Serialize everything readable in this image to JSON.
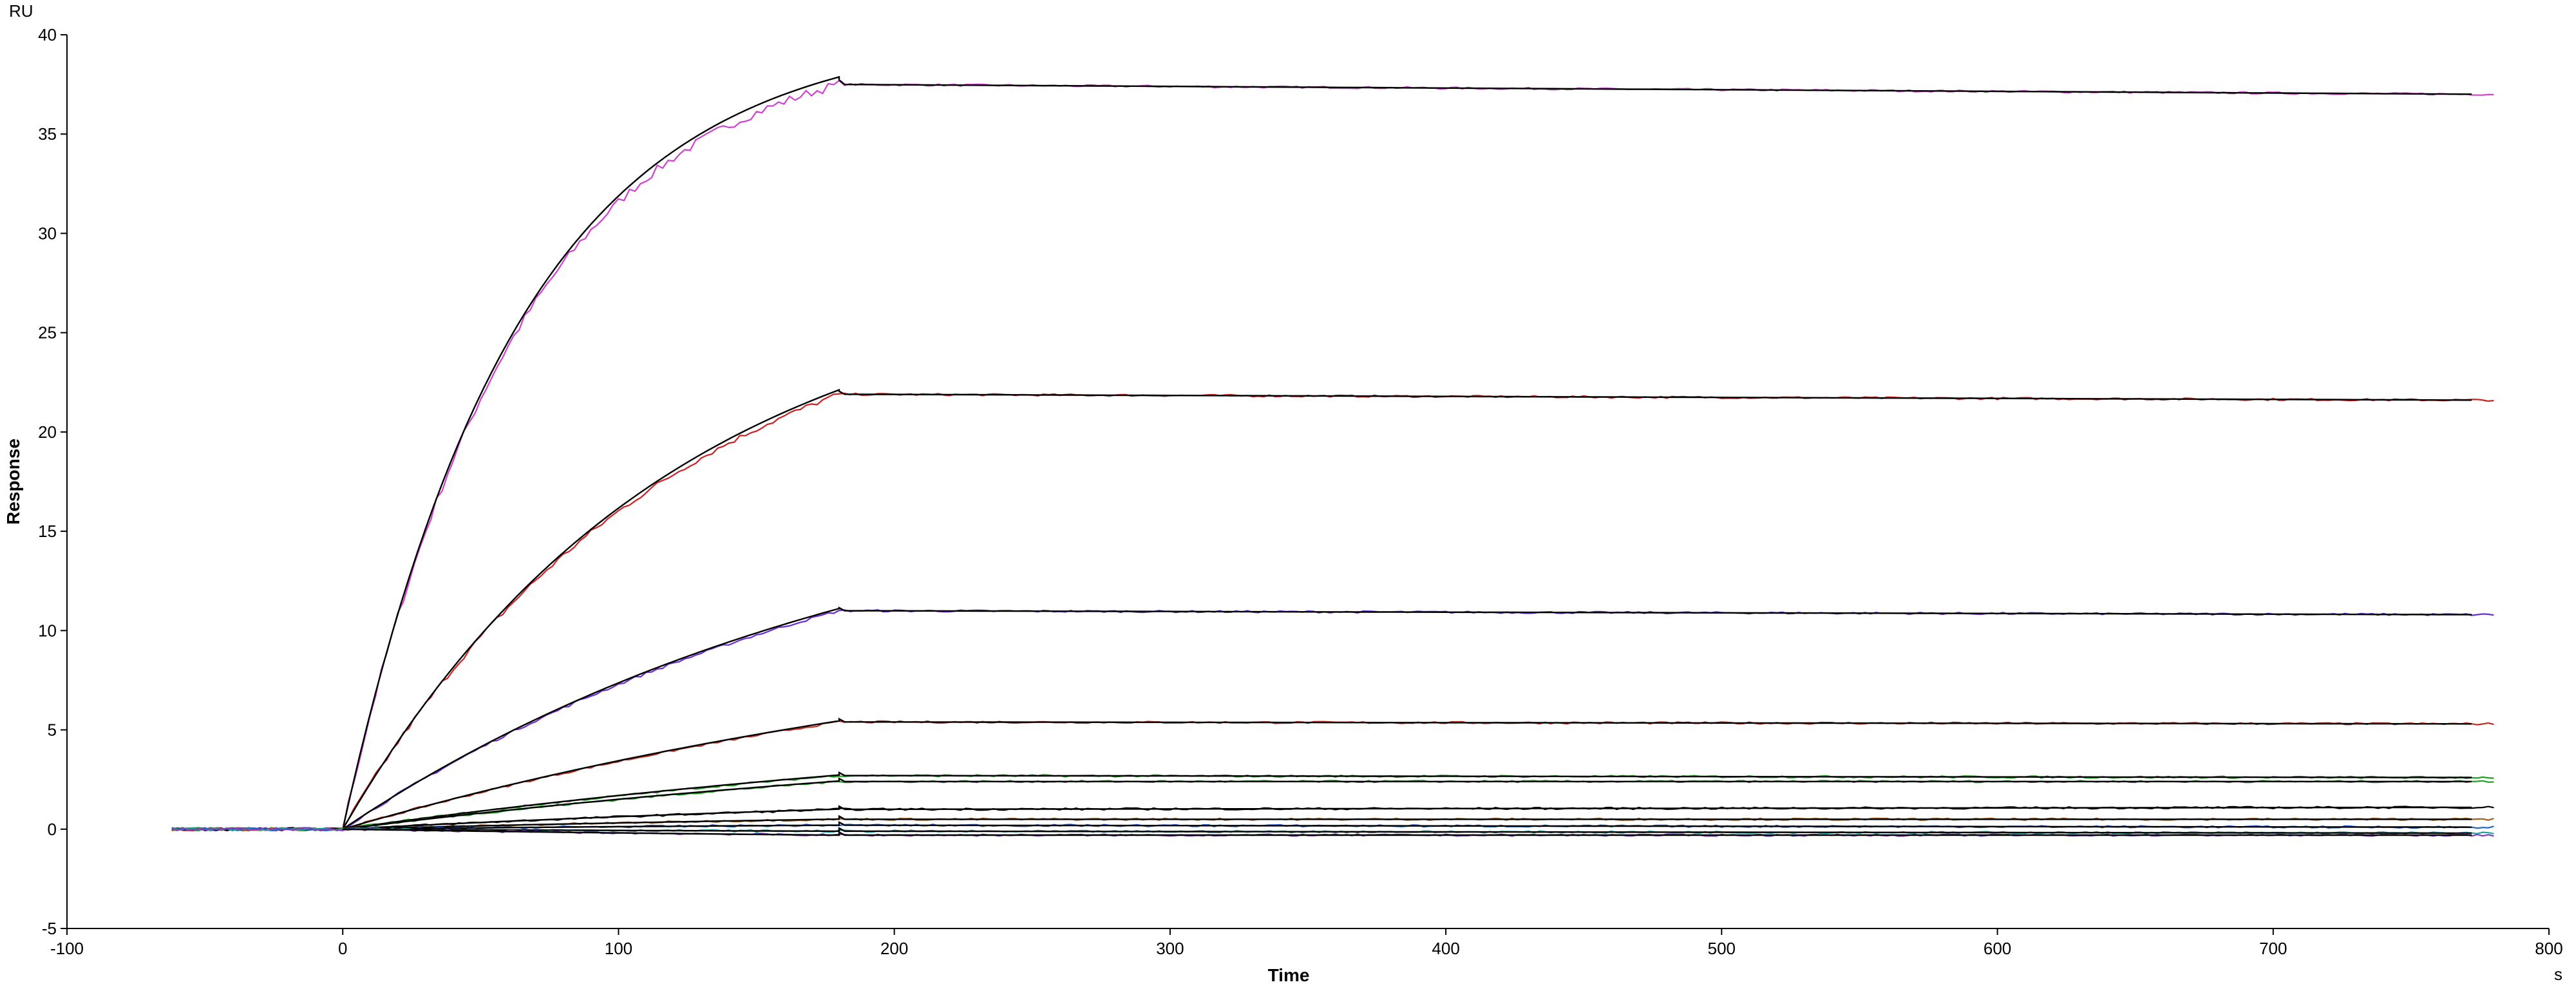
{
  "chart_data": {
    "type": "line",
    "title": "",
    "xlabel": "Time",
    "ylabel": "Response",
    "x_unit": "s",
    "y_unit": "RU",
    "xlim": [
      -100,
      800
    ],
    "ylim": [
      -5,
      40
    ],
    "x_ticks": [
      -100,
      0,
      100,
      200,
      300,
      400,
      500,
      600,
      700,
      800
    ],
    "y_ticks": [
      -5,
      0,
      5,
      10,
      15,
      20,
      25,
      30,
      35,
      40
    ],
    "grid": false,
    "legend": "none",
    "injection_start": 0,
    "injection_end": 180,
    "series": [
      {
        "color": "#d040d0",
        "fit_color": "#000000",
        "baseline_start": -62,
        "plateau": 37.5,
        "end_value": 37.0,
        "shape": "exp",
        "k": 0.0157
      },
      {
        "color": "#d02020",
        "fit_color": "#000000",
        "baseline_start": -62,
        "plateau": 21.9,
        "end_value": 21.6,
        "shape": "exp",
        "k": 0.0085
      },
      {
        "color": "#6a2cd8",
        "fit_color": "#000000",
        "baseline_start": -62,
        "plateau": 11.0,
        "end_value": 10.8,
        "shape": "exp",
        "k": 0.005
      },
      {
        "color": "#c03020",
        "fit_color": "#000000",
        "baseline_start": -62,
        "plateau": 5.4,
        "end_value": 5.3,
        "shape": "exp",
        "k": 0.0035
      },
      {
        "color": "#20a020",
        "fit_color": "#000000",
        "baseline_start": -62,
        "plateau": 2.7,
        "end_value": 2.6,
        "shape": "exp",
        "k": 0.003
      },
      {
        "color": "#20a020",
        "fit_color": "#000000",
        "baseline_start": -62,
        "plateau": 2.4,
        "end_value": 2.4,
        "shape": "exp",
        "k": 0.003
      },
      {
        "color": "#000000",
        "fit_color": "#000000",
        "baseline_start": -62,
        "plateau": 1.0,
        "end_value": 1.1,
        "shape": "exp",
        "k": 0.003
      },
      {
        "color": "#a06020",
        "fit_color": "#000000",
        "baseline_start": -62,
        "plateau": 0.5,
        "end_value": 0.5,
        "shape": "exp",
        "k": 0.003
      },
      {
        "color": "#2060d0",
        "fit_color": "#000000",
        "baseline_start": -62,
        "plateau": 0.2,
        "end_value": 0.1,
        "shape": "flat",
        "k": 0.003
      },
      {
        "color": "#20a0a0",
        "fit_color": "#000000",
        "baseline_start": -62,
        "plateau": -0.1,
        "end_value": -0.2,
        "shape": "flat",
        "k": 0.003
      },
      {
        "color": "#8040c0",
        "fit_color": "#000000",
        "baseline_start": -62,
        "plateau": -0.3,
        "end_value": -0.3,
        "shape": "flat",
        "k": 0.003
      }
    ],
    "x_end": 780
  }
}
